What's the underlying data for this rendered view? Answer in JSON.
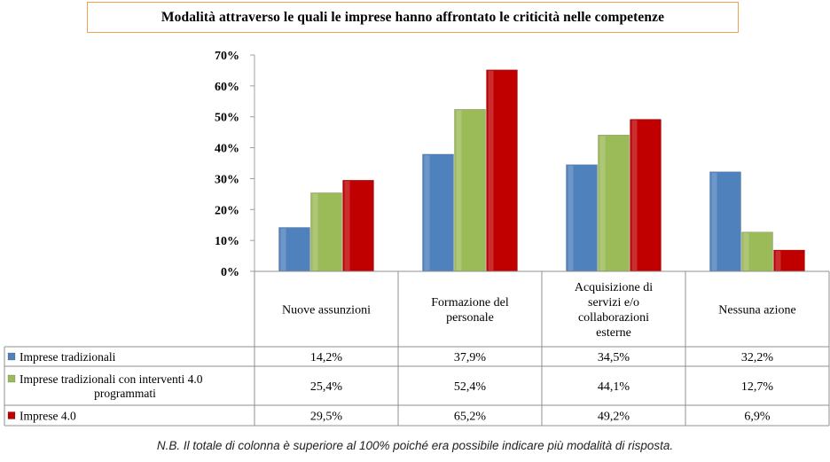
{
  "chart_data": {
    "type": "bar",
    "title": "Modalità attraverso le quali le imprese hanno affrontato le criticità nelle competenze",
    "categories": [
      [
        "Nuove assunzioni"
      ],
      [
        "Formazione del",
        "personale"
      ],
      [
        "Acquisizione di",
        "servizi e/o",
        "collaborazioni",
        "esterne"
      ],
      [
        "Nessuna azione"
      ]
    ],
    "series": [
      {
        "name": "Imprese tradizionali",
        "label_lines": [
          "Imprese tradizionali"
        ],
        "color": "#4f81bd",
        "values": [
          14.2,
          37.9,
          34.5,
          32.2
        ],
        "labels": [
          "14,2%",
          "37,9%",
          "34,5%",
          "32,2%"
        ]
      },
      {
        "name": "Imprese tradizionali con interventi 4.0 programmati",
        "label_lines": [
          "Imprese tradizionali con interventi 4.0",
          "programmati"
        ],
        "color": "#9bbb59",
        "values": [
          25.4,
          52.4,
          44.1,
          12.7
        ],
        "labels": [
          "25,4%",
          "52,4%",
          "44,1%",
          "12,7%"
        ]
      },
      {
        "name": "Imprese 4.0",
        "label_lines": [
          "Imprese 4.0"
        ],
        "color": "#c00000",
        "values": [
          29.5,
          65.2,
          49.2,
          6.9
        ],
        "labels": [
          "29,5%",
          "65,2%",
          "49,2%",
          "6,9%"
        ]
      }
    ],
    "ylim": [
      0,
      70
    ],
    "yticks": [
      0,
      10,
      20,
      30,
      40,
      50,
      60,
      70
    ],
    "ytick_labels": [
      "0%",
      "10%",
      "20%",
      "30%",
      "40%",
      "50%",
      "60%",
      "70%"
    ],
    "legend": "data-table"
  },
  "note": "N.B. Il totale di colonna è superiore al 100% poiché era possibile indicare più modalità di risposta."
}
